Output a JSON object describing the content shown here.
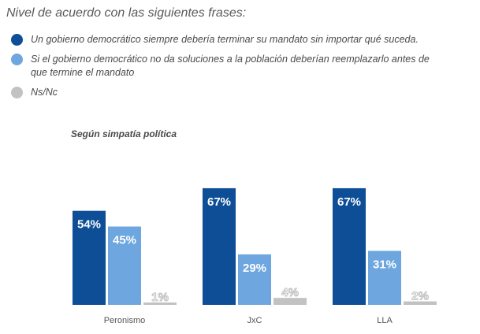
{
  "title": "Nivel de acuerdo con las siguientes frases:",
  "subtitle": "Según simpatía política",
  "legend": [
    {
      "text": "Un gobierno democrático siempre debería terminar su mandato sin importar qué suceda.",
      "color": "#0d4e96"
    },
    {
      "text": "Si el gobierno democrático no da soluciones a la población deberían reemplazarlo antes de que termine el mandato",
      "color": "#6ea6df"
    },
    {
      "text": "Ns/Nc",
      "color": "#c2c2c2"
    }
  ],
  "chart_data": {
    "type": "bar",
    "categories": [
      "Peronismo",
      "JxC",
      "LLA"
    ],
    "series": [
      {
        "name": "Un gobierno democrático siempre debería terminar su mandato sin importar qué suceda.",
        "values": [
          54,
          67,
          67
        ],
        "color": "#0d4e96"
      },
      {
        "name": "Si el gobierno democrático no da soluciones a la población deberían reemplazarlo antes de que termine el mandato",
        "values": [
          45,
          29,
          31
        ],
        "color": "#6ea6df"
      },
      {
        "name": "Ns/Nc",
        "values": [
          1,
          4,
          2
        ],
        "color": "#c2c2c2"
      }
    ],
    "data_labels": [
      [
        "54%",
        "45%",
        "1%"
      ],
      [
        "67%",
        "29%",
        "4%"
      ],
      [
        "67%",
        "31%",
        "2%"
      ]
    ],
    "ylim": [
      0,
      70
    ]
  }
}
